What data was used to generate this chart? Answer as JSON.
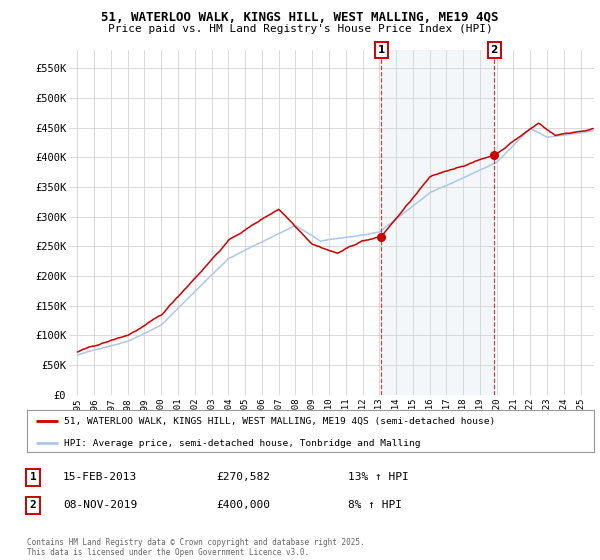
{
  "title_line1": "51, WATERLOO WALK, KINGS HILL, WEST MALLING, ME19 4QS",
  "title_line2": "Price paid vs. HM Land Registry's House Price Index (HPI)",
  "legend_label1": "51, WATERLOO WALK, KINGS HILL, WEST MALLING, ME19 4QS (semi-detached house)",
  "legend_label2": "HPI: Average price, semi-detached house, Tonbridge and Malling",
  "annotation1_date": "15-FEB-2013",
  "annotation1_price": "£270,582",
  "annotation1_hpi": "13% ↑ HPI",
  "annotation2_date": "08-NOV-2019",
  "annotation2_price": "£400,000",
  "annotation2_hpi": "8% ↑ HPI",
  "footer": "Contains HM Land Registry data © Crown copyright and database right 2025.\nThis data is licensed under the Open Government Licence v3.0.",
  "xmin": 1994.5,
  "xmax": 2025.8,
  "ymin": 0,
  "ymax": 580000,
  "yticks": [
    0,
    50000,
    100000,
    150000,
    200000,
    250000,
    300000,
    350000,
    400000,
    450000,
    500000,
    550000
  ],
  "ytick_labels": [
    "£0",
    "£50K",
    "£100K",
    "£150K",
    "£200K",
    "£250K",
    "£300K",
    "£350K",
    "£400K",
    "£450K",
    "£500K",
    "£550K"
  ],
  "xticks": [
    1995,
    1996,
    1997,
    1998,
    1999,
    2000,
    2001,
    2002,
    2003,
    2004,
    2005,
    2006,
    2007,
    2008,
    2009,
    2010,
    2011,
    2012,
    2013,
    2014,
    2015,
    2016,
    2017,
    2018,
    2019,
    2020,
    2021,
    2022,
    2023,
    2024,
    2025
  ],
  "transaction1_x": 2013.12,
  "transaction1_y": 270582,
  "transaction2_x": 2019.85,
  "transaction2_y": 400000,
  "red_color": "#cc0000",
  "blue_color": "#aec6e8",
  "plot_bg": "#ffffff"
}
